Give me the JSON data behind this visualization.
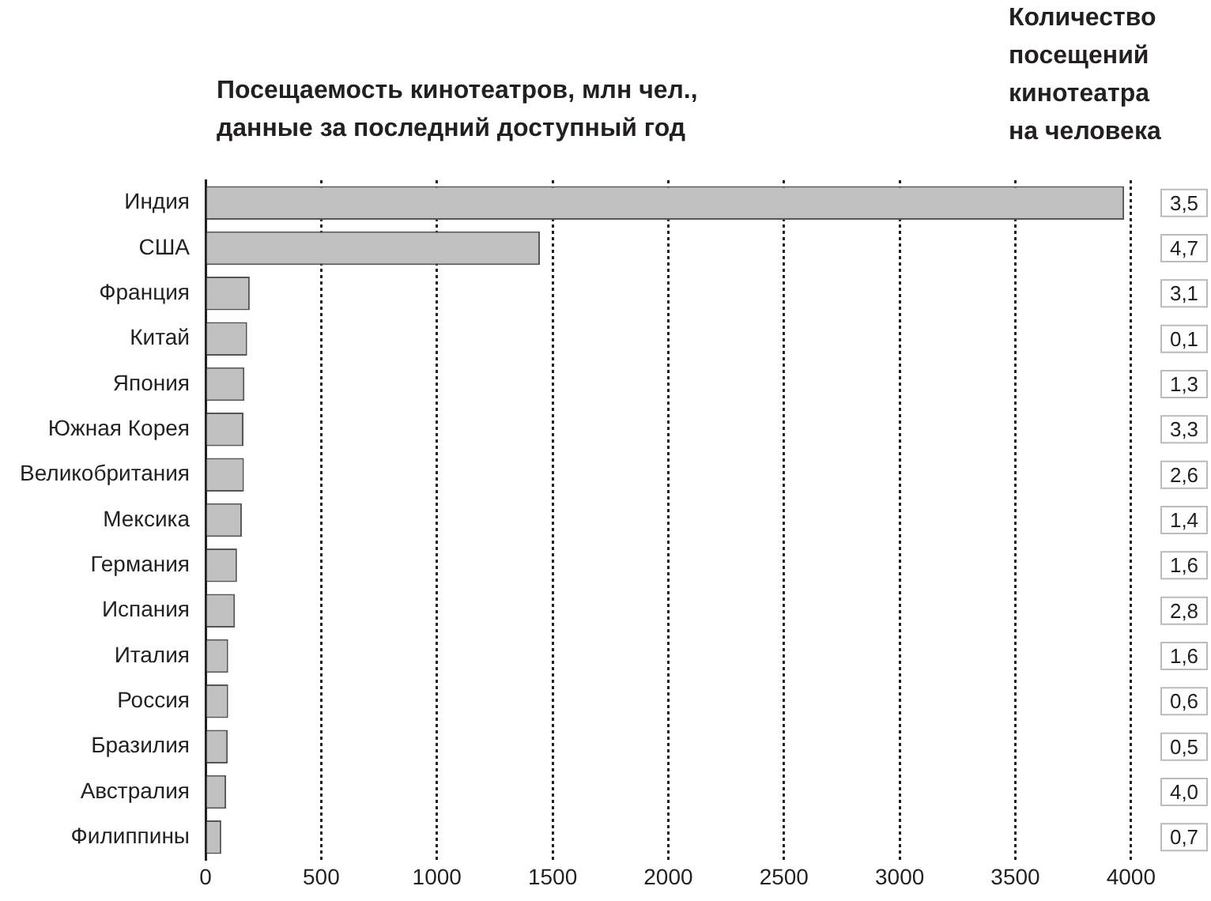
{
  "chart_data": [
    {
      "type": "bar",
      "orientation": "horizontal",
      "title": "Посещаемость кинотеатров, млн чел., данные за последний доступный год",
      "categories": [
        "Индия",
        "США",
        "Франция",
        "Китай",
        "Япония",
        "Южная Корея",
        "Великобритания",
        "Мексика",
        "Германия",
        "Испания",
        "Италия",
        "Россия",
        "Бразилия",
        "Австралия",
        "Филиппины"
      ],
      "values": [
        3970,
        1445,
        191,
        180,
        168,
        164,
        166,
        157,
        136,
        127,
        98,
        98,
        96,
        89,
        68
      ],
      "color": "#c0c0c0",
      "xlim": [
        0,
        4000
      ],
      "xticks": [
        0,
        500,
        1000,
        1500,
        2000,
        2500,
        3000,
        3500,
        4000
      ],
      "grid": "x"
    },
    {
      "type": "other",
      "title": "Количество посещений кинотеатра на человека",
      "categories": [
        null,
        null,
        null,
        null,
        null,
        null,
        null,
        null,
        null,
        null,
        null,
        null,
        null,
        null,
        null
      ],
      "values": [
        3.5,
        4.7,
        3.1,
        0.1,
        1.3,
        3.3,
        2.6,
        1.4,
        1.6,
        2.8,
        1.6,
        0.6,
        0.5,
        4.0,
        0.7
      ],
      "value_labels": [
        "3,5",
        "4,7",
        "3,1",
        "0,1",
        "1,3",
        "3,3",
        "2,6",
        "1,4",
        "1,6",
        "2,8",
        "1,6",
        "0,6",
        "0,5",
        "4,0",
        "0,7"
      ]
    }
  ]
}
